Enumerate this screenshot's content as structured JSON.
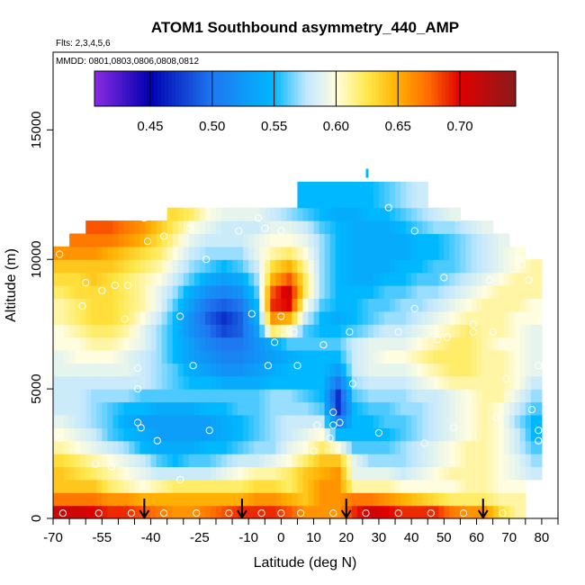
{
  "chart_data": {
    "type": "heatmap",
    "title": "ATOM1 Southbound asymmetry_440_AMP",
    "flights_note": "Flts: 2,3,4,5,6",
    "dates_note": "MMDD: 0801,0803,0806,0808,0812",
    "xlabel": "Latitude (deg N)",
    "ylabel": "Altitude (m)",
    "xlim": [
      -70,
      85
    ],
    "ylim": [
      0,
      18000
    ],
    "x_ticks": [
      -70,
      -55,
      -40,
      -25,
      -10,
      0,
      10,
      20,
      30,
      40,
      50,
      60,
      70,
      80
    ],
    "x_tick_labels": [
      "-70",
      "-55",
      "-40",
      "-25",
      "-10",
      "0",
      "10",
      "20",
      "30",
      "40",
      "50",
      "60",
      "70",
      "80"
    ],
    "y_ticks": [
      0,
      5000,
      10000,
      15000
    ],
    "y_tick_labels": [
      "0",
      "5000",
      "10000",
      "15000"
    ],
    "colorbar": {
      "min": 0.405,
      "max": 0.745,
      "ticks": [
        0.45,
        0.5,
        0.55,
        0.6,
        0.65,
        0.7
      ],
      "tick_labels": [
        "0.45",
        "0.50",
        "0.55",
        "0.60",
        "0.65",
        "0.70"
      ],
      "stops": [
        {
          "v": 0.405,
          "c": "#8a2be2"
        },
        {
          "v": 0.45,
          "c": "#0000b0"
        },
        {
          "v": 0.5,
          "c": "#1e78f0"
        },
        {
          "v": 0.55,
          "c": "#00b8ff"
        },
        {
          "v": 0.575,
          "c": "#bfe6ff"
        },
        {
          "v": 0.6,
          "c": "#fffde0"
        },
        {
          "v": 0.625,
          "c": "#ffe84a"
        },
        {
          "v": 0.65,
          "c": "#ffb000"
        },
        {
          "v": 0.675,
          "c": "#ff6a00"
        },
        {
          "v": 0.7,
          "c": "#e00000"
        },
        {
          "v": 0.745,
          "c": "#8b1a1a"
        }
      ]
    },
    "grid": {
      "lat": [
        -67.5,
        -62.5,
        -57.5,
        -52.5,
        -47.5,
        -42.5,
        -37.5,
        -32.5,
        -27.5,
        -22.5,
        -17.5,
        -12.5,
        -7.5,
        -2.5,
        2.5,
        7.5,
        12.5,
        17.5,
        22.5,
        27.5,
        32.5,
        37.5,
        42.5,
        47.5,
        52.5,
        57.5,
        62.5,
        67.5,
        72.5,
        77.5
      ],
      "alt": [
        250,
        750,
        1250,
        1750,
        2250,
        2750,
        3250,
        3750,
        4250,
        4750,
        5250,
        5750,
        6250,
        6750,
        7250,
        7750,
        8250,
        8750,
        9250,
        9750,
        10250,
        10750,
        11250,
        11750,
        12250,
        12750
      ],
      "values": [
        [
          0.71,
          0.71,
          0.7,
          0.69,
          0.69,
          0.68,
          0.67,
          0.66,
          0.66,
          0.67,
          0.68,
          0.69,
          0.69,
          0.69,
          0.68,
          0.66,
          0.66,
          0.66,
          0.69,
          0.71,
          0.7,
          0.69,
          0.69,
          0.69,
          0.67,
          0.66,
          0.66,
          0.63,
          0.61,
          null
        ],
        [
          0.67,
          0.67,
          0.67,
          0.66,
          0.66,
          0.65,
          0.65,
          0.65,
          0.65,
          0.65,
          0.65,
          0.65,
          0.66,
          0.66,
          0.65,
          0.64,
          0.66,
          0.66,
          0.67,
          0.67,
          0.66,
          0.65,
          0.64,
          0.63,
          0.62,
          0.62,
          0.62,
          0.61,
          0.61,
          null
        ],
        [
          0.64,
          0.64,
          0.64,
          0.62,
          0.61,
          0.6,
          0.61,
          0.62,
          0.62,
          0.62,
          0.62,
          0.62,
          0.63,
          0.63,
          0.62,
          0.64,
          0.66,
          0.66,
          0.61,
          0.61,
          0.61,
          0.6,
          0.6,
          0.6,
          0.6,
          0.61,
          0.61,
          0.6,
          0.6,
          null
        ],
        [
          0.64,
          0.63,
          0.62,
          0.61,
          0.6,
          0.59,
          0.58,
          0.58,
          0.58,
          0.58,
          0.59,
          0.6,
          0.61,
          0.61,
          0.62,
          0.64,
          0.65,
          0.66,
          0.59,
          0.59,
          0.59,
          0.58,
          0.59,
          0.6,
          0.61,
          0.61,
          0.61,
          0.6,
          0.59,
          0.58
        ],
        [
          0.63,
          0.62,
          0.61,
          0.6,
          0.59,
          0.58,
          0.56,
          0.55,
          0.56,
          0.56,
          0.57,
          0.58,
          0.58,
          0.59,
          0.6,
          0.62,
          0.64,
          0.64,
          0.59,
          0.57,
          0.57,
          0.57,
          0.58,
          0.59,
          0.6,
          0.61,
          0.61,
          0.6,
          0.59,
          0.57
        ],
        [
          0.61,
          0.6,
          0.59,
          0.58,
          0.57,
          0.55,
          0.54,
          0.54,
          0.54,
          0.55,
          0.55,
          0.56,
          0.57,
          0.57,
          0.59,
          0.6,
          0.62,
          0.6,
          0.56,
          0.56,
          0.56,
          0.57,
          0.58,
          0.59,
          0.6,
          0.61,
          0.61,
          0.6,
          0.58,
          0.56
        ],
        [
          0.6,
          0.59,
          0.58,
          0.56,
          0.55,
          0.54,
          0.53,
          0.53,
          0.53,
          0.53,
          0.54,
          0.55,
          0.56,
          0.57,
          0.58,
          0.59,
          0.6,
          0.55,
          0.55,
          0.55,
          0.55,
          0.56,
          0.57,
          0.58,
          0.59,
          0.6,
          0.61,
          0.6,
          0.58,
          0.55
        ],
        [
          0.59,
          0.58,
          0.57,
          0.56,
          0.54,
          0.53,
          0.53,
          0.53,
          0.53,
          0.53,
          0.54,
          0.55,
          0.56,
          0.57,
          0.58,
          0.58,
          0.58,
          0.5,
          0.55,
          0.55,
          0.56,
          0.56,
          0.57,
          0.58,
          0.59,
          0.6,
          0.61,
          0.6,
          0.57,
          0.55
        ],
        [
          0.58,
          0.58,
          0.57,
          0.56,
          0.55,
          0.55,
          0.54,
          0.54,
          0.54,
          0.55,
          0.55,
          0.56,
          0.56,
          0.57,
          0.57,
          0.57,
          0.56,
          0.47,
          0.55,
          0.56,
          0.56,
          0.57,
          0.57,
          0.58,
          0.59,
          0.6,
          0.61,
          0.6,
          0.58,
          0.56
        ],
        [
          0.58,
          0.58,
          0.57,
          0.57,
          0.57,
          0.56,
          0.56,
          0.56,
          0.56,
          0.56,
          0.56,
          0.56,
          0.56,
          0.57,
          0.57,
          0.56,
          0.55,
          0.47,
          0.56,
          0.57,
          0.57,
          0.57,
          0.58,
          0.58,
          0.59,
          0.6,
          0.61,
          0.61,
          0.59,
          0.57
        ],
        [
          0.58,
          0.58,
          0.58,
          0.58,
          0.58,
          0.58,
          0.57,
          0.56,
          0.55,
          0.55,
          0.54,
          0.54,
          0.54,
          0.55,
          0.55,
          0.55,
          0.55,
          0.5,
          0.57,
          0.58,
          0.58,
          0.58,
          0.59,
          0.6,
          0.61,
          0.61,
          0.61,
          0.61,
          0.6,
          0.58
        ],
        [
          0.59,
          0.59,
          0.59,
          0.59,
          0.59,
          0.58,
          0.57,
          0.56,
          0.54,
          0.53,
          0.52,
          0.52,
          0.53,
          0.54,
          0.55,
          0.55,
          0.55,
          0.53,
          0.58,
          0.59,
          0.59,
          0.59,
          0.6,
          0.61,
          0.62,
          0.62,
          0.61,
          0.61,
          0.6,
          0.59
        ],
        [
          0.59,
          0.6,
          0.6,
          0.6,
          0.59,
          0.58,
          0.57,
          0.55,
          0.53,
          0.52,
          0.51,
          0.51,
          0.52,
          0.53,
          0.54,
          0.55,
          0.55,
          0.55,
          0.58,
          0.59,
          0.6,
          0.6,
          0.61,
          0.62,
          0.62,
          0.62,
          0.61,
          0.61,
          0.6,
          0.59
        ],
        [
          0.6,
          0.6,
          0.61,
          0.61,
          0.6,
          0.59,
          0.57,
          0.55,
          0.53,
          0.51,
          0.5,
          0.5,
          0.52,
          0.54,
          0.56,
          0.56,
          0.56,
          0.56,
          0.58,
          0.59,
          0.59,
          0.59,
          0.6,
          0.61,
          0.62,
          0.62,
          0.61,
          0.6,
          0.6,
          0.59
        ],
        [
          0.6,
          0.61,
          0.62,
          0.62,
          0.61,
          0.59,
          0.57,
          0.55,
          0.52,
          0.5,
          0.48,
          0.49,
          0.53,
          0.62,
          0.6,
          0.56,
          0.55,
          0.55,
          0.56,
          0.57,
          0.58,
          0.58,
          0.59,
          0.6,
          0.61,
          0.62,
          0.61,
          0.61,
          0.6,
          0.59
        ],
        [
          0.61,
          0.62,
          0.63,
          0.63,
          0.62,
          0.6,
          0.58,
          0.55,
          0.52,
          0.49,
          0.47,
          0.49,
          0.54,
          0.66,
          0.65,
          0.58,
          0.55,
          0.54,
          0.55,
          0.56,
          0.57,
          0.57,
          0.58,
          0.59,
          0.6,
          0.61,
          0.61,
          0.61,
          0.6,
          0.6
        ],
        [
          0.61,
          0.62,
          0.63,
          0.63,
          0.62,
          0.61,
          0.59,
          0.56,
          0.53,
          0.5,
          0.49,
          0.5,
          0.55,
          0.69,
          0.7,
          0.6,
          0.56,
          0.55,
          0.55,
          0.56,
          0.56,
          0.57,
          0.57,
          0.58,
          0.59,
          0.6,
          0.61,
          0.61,
          0.61,
          0.6
        ],
        [
          0.62,
          0.63,
          0.63,
          0.63,
          0.62,
          0.61,
          0.59,
          0.57,
          0.54,
          0.52,
          0.51,
          0.52,
          0.56,
          0.68,
          0.71,
          0.62,
          0.57,
          0.55,
          0.55,
          0.55,
          0.56,
          0.56,
          0.57,
          0.57,
          0.58,
          0.59,
          0.6,
          0.61,
          0.61,
          0.61
        ],
        [
          0.63,
          0.63,
          0.64,
          0.63,
          0.62,
          0.61,
          0.6,
          0.58,
          0.56,
          0.54,
          0.53,
          0.54,
          0.57,
          0.65,
          0.68,
          0.62,
          0.57,
          0.55,
          0.54,
          0.54,
          0.55,
          0.55,
          0.56,
          0.56,
          0.57,
          0.58,
          0.59,
          0.6,
          0.61,
          0.61
        ],
        [
          0.64,
          0.64,
          0.64,
          0.64,
          0.63,
          0.62,
          0.61,
          0.59,
          0.57,
          0.56,
          0.55,
          0.56,
          0.58,
          0.63,
          0.65,
          0.61,
          0.57,
          0.55,
          0.54,
          0.54,
          0.54,
          0.55,
          0.55,
          0.56,
          0.56,
          0.57,
          0.58,
          0.59,
          0.6,
          0.61
        ],
        [
          0.66,
          0.66,
          0.66,
          0.65,
          0.64,
          0.63,
          0.62,
          0.6,
          0.58,
          0.57,
          0.57,
          0.57,
          0.59,
          0.61,
          0.62,
          0.6,
          0.57,
          0.55,
          0.54,
          0.54,
          0.54,
          0.54,
          0.55,
          0.55,
          0.56,
          0.57,
          0.58,
          0.59,
          0.6,
          null
        ],
        [
          null,
          0.67,
          0.67,
          0.67,
          0.66,
          0.65,
          0.63,
          0.61,
          0.59,
          0.58,
          0.58,
          0.58,
          0.59,
          0.6,
          0.6,
          0.59,
          0.57,
          0.55,
          0.54,
          0.54,
          0.54,
          0.54,
          0.55,
          0.55,
          0.56,
          0.57,
          0.58,
          0.59,
          null,
          null
        ],
        [
          null,
          null,
          0.68,
          0.68,
          0.67,
          0.66,
          0.64,
          0.62,
          0.6,
          0.59,
          0.58,
          0.58,
          0.58,
          0.59,
          0.59,
          0.58,
          0.56,
          0.55,
          0.54,
          0.54,
          0.54,
          0.55,
          0.56,
          0.57,
          0.57,
          0.58,
          0.59,
          null,
          null,
          null
        ],
        [
          null,
          null,
          null,
          null,
          null,
          null,
          null,
          0.63,
          0.62,
          0.6,
          0.59,
          0.59,
          0.59,
          0.58,
          0.57,
          0.56,
          0.55,
          0.54,
          0.54,
          0.55,
          0.55,
          0.56,
          0.57,
          0.58,
          0.59,
          null,
          null,
          null,
          null,
          null
        ],
        [
          null,
          null,
          null,
          null,
          null,
          null,
          null,
          null,
          null,
          null,
          null,
          null,
          null,
          null,
          null,
          0.55,
          0.55,
          0.55,
          0.55,
          0.55,
          0.56,
          0.57,
          0.58,
          null,
          null,
          null,
          null,
          null,
          null,
          null
        ],
        [
          null,
          null,
          null,
          null,
          null,
          null,
          null,
          null,
          null,
          null,
          null,
          null,
          null,
          null,
          null,
          0.55,
          0.55,
          0.55,
          0.55,
          0.55,
          0.56,
          0.57,
          0.58,
          null,
          null,
          null,
          null,
          null,
          null,
          null
        ]
      ]
    },
    "sample_points": [
      [
        -67,
        200
      ],
      [
        -56,
        200
      ],
      [
        -46,
        200
      ],
      [
        -36,
        200
      ],
      [
        -26,
        200
      ],
      [
        -16,
        200
      ],
      [
        -6,
        200
      ],
      [
        0,
        200
      ],
      [
        6,
        200
      ],
      [
        16,
        200
      ],
      [
        26,
        200
      ],
      [
        36,
        200
      ],
      [
        46,
        200
      ],
      [
        56,
        200
      ],
      [
        68,
        200
      ],
      [
        -68,
        10200
      ],
      [
        -60,
        9100
      ],
      [
        -55,
        8800
      ],
      [
        -51,
        9000
      ],
      [
        -47,
        9000
      ],
      [
        -61,
        8200
      ],
      [
        -48,
        7700
      ],
      [
        -31,
        7800
      ],
      [
        -9,
        7900
      ],
      [
        0,
        7800
      ],
      [
        4,
        7200
      ],
      [
        21,
        7200
      ],
      [
        36,
        7200
      ],
      [
        41,
        8100
      ],
      [
        51,
        7000
      ],
      [
        59,
        7500
      ],
      [
        65,
        7200
      ],
      [
        80,
        7700
      ],
      [
        -68,
        3100
      ],
      [
        -57,
        2100
      ],
      [
        -52,
        2000
      ],
      [
        -44,
        3700
      ],
      [
        -43,
        3500
      ],
      [
        -38,
        3000
      ],
      [
        -22,
        3400
      ],
      [
        -4,
        5900
      ],
      [
        5,
        5900
      ],
      [
        11,
        3600
      ],
      [
        16,
        3600
      ],
      [
        18,
        3700
      ],
      [
        30,
        3300
      ],
      [
        44,
        2900
      ],
      [
        53,
        3500
      ],
      [
        66,
        3900
      ],
      [
        79,
        3400
      ],
      [
        79,
        3000
      ],
      [
        79,
        1200
      ],
      [
        -42,
        11600
      ],
      [
        -41,
        10700
      ],
      [
        -36,
        10900
      ],
      [
        -28,
        11200
      ],
      [
        -23,
        10000
      ],
      [
        -13,
        11100
      ],
      [
        -7,
        11600
      ],
      [
        -5,
        11200
      ],
      [
        0,
        11100
      ],
      [
        33,
        12000
      ],
      [
        41,
        11100
      ],
      [
        50,
        9300
      ],
      [
        64,
        9200
      ],
      [
        73,
        10000
      ],
      [
        74,
        9800
      ],
      [
        76,
        9200
      ],
      [
        -31,
        1500
      ],
      [
        -27,
        5900
      ],
      [
        -44,
        5000
      ],
      [
        -44,
        5800
      ],
      [
        10,
        2600
      ],
      [
        15,
        3100
      ],
      [
        16,
        4100
      ],
      [
        22,
        5200
      ],
      [
        48,
        6900
      ],
      [
        59,
        7200
      ],
      [
        69,
        5400
      ],
      [
        77,
        4200
      ],
      [
        79,
        5900
      ],
      [
        -2,
        6800
      ],
      [
        13,
        6700
      ]
    ],
    "arrows_lat": [
      -42,
      -12,
      20,
      62
    ]
  }
}
